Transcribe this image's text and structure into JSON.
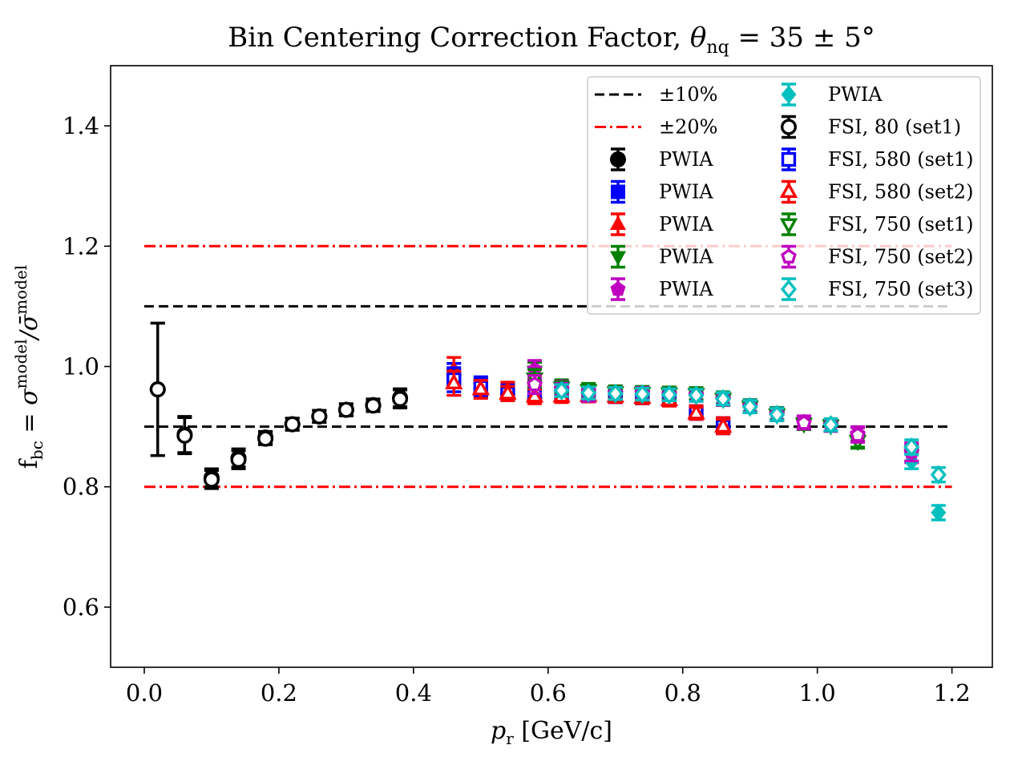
{
  "chart_data": {
    "type": "scatter",
    "title": "Bin Centering Correction Factor, θnq = 35 ± 5°",
    "title_parts": {
      "prefix": "Bin Centering Correction Factor, ",
      "theta": "θ",
      "sub": "nq",
      "rest": " = 35 ± 5°"
    },
    "xlabel": "pr [GeV/c]",
    "xlabel_parts": {
      "p": "p",
      "sub": "r",
      "rest": " [GeV/c]"
    },
    "ylabel": "fbc = σmodel/σ̄model",
    "ylabel_parts": {
      "f": "f",
      "fsub": "bc",
      "eq": " = σ",
      "sup1": "model",
      "slash": "/σ̄",
      "sup2": "model"
    },
    "xlim": [
      -0.05,
      1.26
    ],
    "ylim": [
      0.5,
      1.5
    ],
    "xticks": [
      0.0,
      0.2,
      0.4,
      0.6,
      0.8,
      1.0,
      1.2
    ],
    "xtick_labels": [
      "0.0",
      "0.2",
      "0.4",
      "0.6",
      "0.8",
      "1.0",
      "1.2"
    ],
    "yticks": [
      0.6,
      0.8,
      1.0,
      1.2,
      1.4
    ],
    "ytick_labels": [
      "0.6",
      "0.8",
      "1.0",
      "1.2",
      "1.4"
    ],
    "grid": false,
    "legend_position": "top-right",
    "reference_lines": [
      {
        "name": "±10%",
        "label": "±10%",
        "style": "dashed",
        "color": "#000000",
        "values": [
          0.9,
          1.1
        ],
        "x_range": [
          0.0,
          1.2
        ]
      },
      {
        "name": "±20%",
        "label": "±20%",
        "style": "dashdot",
        "color": "#ff0000",
        "values": [
          0.8,
          1.2
        ],
        "x_range": [
          0.0,
          1.2
        ]
      }
    ],
    "series": [
      {
        "name": "PWIA",
        "label": "PWIA",
        "marker": "circle",
        "filled": true,
        "color": "#000000",
        "points": [
          [
            0.02,
            0.962,
            0.11
          ],
          [
            0.06,
            0.887,
            0.03
          ],
          [
            0.1,
            0.815,
            0.015
          ],
          [
            0.14,
            0.848,
            0.015
          ],
          [
            0.18,
            0.882,
            0.01
          ],
          [
            0.22,
            0.904,
            0.01
          ],
          [
            0.26,
            0.917,
            0.01
          ],
          [
            0.3,
            0.928,
            0.01
          ],
          [
            0.34,
            0.936,
            0.01
          ],
          [
            0.38,
            0.948,
            0.015
          ]
        ]
      },
      {
        "name": "PWIA",
        "label": "PWIA",
        "marker": "square",
        "filled": true,
        "color": "#0000ff",
        "points": [
          [
            0.46,
            0.985,
            0.02
          ],
          [
            0.5,
            0.968,
            0.015
          ],
          [
            0.54,
            0.958,
            0.012
          ],
          [
            0.58,
            0.955,
            0.012
          ],
          [
            0.62,
            0.953,
            0.01
          ],
          [
            0.66,
            0.952,
            0.01
          ],
          [
            0.7,
            0.951,
            0.01
          ],
          [
            0.74,
            0.949,
            0.01
          ],
          [
            0.78,
            0.946,
            0.01
          ],
          [
            0.82,
            0.925,
            0.01
          ],
          [
            0.86,
            0.903,
            0.012
          ]
        ]
      },
      {
        "name": "PWIA",
        "label": "PWIA",
        "marker": "triangle-up",
        "filled": true,
        "color": "#ff0000",
        "points": [
          [
            0.46,
            0.995,
            0.02
          ],
          [
            0.5,
            0.965,
            0.015
          ],
          [
            0.54,
            0.962,
            0.012
          ],
          [
            0.58,
            0.955,
            0.012
          ],
          [
            0.62,
            0.952,
            0.01
          ],
          [
            0.66,
            0.953,
            0.01
          ],
          [
            0.7,
            0.951,
            0.01
          ],
          [
            0.74,
            0.949,
            0.01
          ],
          [
            0.78,
            0.945,
            0.01
          ],
          [
            0.82,
            0.925,
            0.01
          ],
          [
            0.86,
            0.903,
            0.012
          ]
        ]
      },
      {
        "name": "PWIA",
        "label": "PWIA",
        "marker": "triangle-down",
        "filled": true,
        "color": "#008000",
        "points": [
          [
            0.58,
            0.992,
            0.015
          ],
          [
            0.62,
            0.968,
            0.01
          ],
          [
            0.66,
            0.962,
            0.01
          ],
          [
            0.7,
            0.958,
            0.01
          ],
          [
            0.74,
            0.957,
            0.01
          ],
          [
            0.78,
            0.956,
            0.01
          ],
          [
            0.82,
            0.955,
            0.01
          ],
          [
            0.86,
            0.948,
            0.01
          ],
          [
            0.9,
            0.935,
            0.01
          ],
          [
            0.94,
            0.922,
            0.01
          ],
          [
            0.98,
            0.905,
            0.01
          ],
          [
            1.02,
            0.903,
            0.01
          ],
          [
            1.06,
            0.878,
            0.012
          ]
        ]
      },
      {
        "name": "PWIA",
        "label": "PWIA",
        "marker": "pentagon",
        "filled": true,
        "color": "#bf00bf",
        "points": [
          [
            0.58,
            0.995,
            0.015
          ],
          [
            0.62,
            0.966,
            0.01
          ],
          [
            0.66,
            0.958,
            0.01
          ],
          [
            0.7,
            0.957,
            0.01
          ],
          [
            0.74,
            0.956,
            0.01
          ],
          [
            0.78,
            0.955,
            0.01
          ],
          [
            0.82,
            0.953,
            0.01
          ],
          [
            0.86,
            0.946,
            0.01
          ],
          [
            0.9,
            0.934,
            0.01
          ],
          [
            0.94,
            0.921,
            0.01
          ],
          [
            0.98,
            0.908,
            0.01
          ],
          [
            1.02,
            0.903,
            0.01
          ],
          [
            1.06,
            0.888,
            0.012
          ],
          [
            1.14,
            0.855,
            0.015
          ]
        ]
      },
      {
        "name": "PWIA",
        "label": "PWIA",
        "marker": "diamond",
        "filled": true,
        "color": "#00bfbf",
        "points": [
          [
            0.62,
            0.962,
            0.01
          ],
          [
            0.66,
            0.958,
            0.01
          ],
          [
            0.7,
            0.956,
            0.01
          ],
          [
            0.74,
            0.955,
            0.01
          ],
          [
            0.78,
            0.954,
            0.01
          ],
          [
            0.82,
            0.953,
            0.01
          ],
          [
            0.86,
            0.947,
            0.01
          ],
          [
            0.9,
            0.934,
            0.01
          ],
          [
            0.94,
            0.921,
            0.01
          ],
          [
            1.02,
            0.903,
            0.01
          ],
          [
            1.14,
            0.842,
            0.012
          ],
          [
            1.18,
            0.757,
            0.012
          ]
        ]
      },
      {
        "name": "FSI, 80 (set1)",
        "label": "FSI, 80 (set1)",
        "marker": "circle",
        "filled": false,
        "color": "#000000",
        "points": [
          [
            0.02,
            0.962,
            0.11
          ],
          [
            0.06,
            0.885,
            0.03
          ],
          [
            0.1,
            0.812,
            0.015
          ],
          [
            0.14,
            0.845,
            0.015
          ],
          [
            0.18,
            0.88,
            0.01
          ],
          [
            0.22,
            0.904,
            0.01
          ],
          [
            0.26,
            0.917,
            0.01
          ],
          [
            0.3,
            0.928,
            0.01
          ],
          [
            0.34,
            0.935,
            0.01
          ],
          [
            0.38,
            0.946,
            0.015
          ]
        ]
      },
      {
        "name": "FSI, 580 (set1)",
        "label": "FSI, 580 (set1)",
        "marker": "square",
        "filled": false,
        "color": "#0000ff",
        "points": [
          [
            0.46,
            0.978,
            0.02
          ],
          [
            0.5,
            0.965,
            0.015
          ],
          [
            0.54,
            0.955,
            0.012
          ],
          [
            0.58,
            0.952,
            0.012
          ],
          [
            0.62,
            0.952,
            0.01
          ],
          [
            0.66,
            0.951,
            0.01
          ],
          [
            0.7,
            0.95,
            0.01
          ],
          [
            0.74,
            0.948,
            0.01
          ],
          [
            0.78,
            0.945,
            0.01
          ],
          [
            0.82,
            0.922,
            0.01
          ],
          [
            0.86,
            0.9,
            0.012
          ]
        ]
      },
      {
        "name": "FSI, 580 (set2)",
        "label": "FSI, 580 (set2)",
        "marker": "triangle-up",
        "filled": false,
        "color": "#ff0000",
        "points": [
          [
            0.46,
            0.972,
            0.02
          ],
          [
            0.5,
            0.962,
            0.015
          ],
          [
            0.54,
            0.955,
            0.012
          ],
          [
            0.58,
            0.95,
            0.012
          ],
          [
            0.62,
            0.95,
            0.01
          ],
          [
            0.66,
            0.951,
            0.01
          ],
          [
            0.7,
            0.95,
            0.01
          ],
          [
            0.74,
            0.948,
            0.01
          ],
          [
            0.78,
            0.944,
            0.01
          ],
          [
            0.82,
            0.922,
            0.01
          ],
          [
            0.86,
            0.9,
            0.012
          ]
        ]
      },
      {
        "name": "FSI, 750 (set1)",
        "label": "FSI, 750 (set1)",
        "marker": "triangle-down",
        "filled": false,
        "color": "#008000",
        "points": [
          [
            0.58,
            0.98,
            0.015
          ],
          [
            0.62,
            0.965,
            0.01
          ],
          [
            0.66,
            0.96,
            0.01
          ],
          [
            0.7,
            0.957,
            0.01
          ],
          [
            0.74,
            0.956,
            0.01
          ],
          [
            0.78,
            0.955,
            0.01
          ],
          [
            0.82,
            0.954,
            0.01
          ],
          [
            0.86,
            0.946,
            0.01
          ],
          [
            0.9,
            0.933,
            0.01
          ],
          [
            0.94,
            0.92,
            0.01
          ],
          [
            0.98,
            0.905,
            0.01
          ],
          [
            1.02,
            0.902,
            0.01
          ],
          [
            1.06,
            0.876,
            0.012
          ]
        ]
      },
      {
        "name": "FSI, 750 (set2)",
        "label": "FSI, 750 (set2)",
        "marker": "pentagon",
        "filled": false,
        "color": "#bf00bf",
        "points": [
          [
            0.58,
            0.97,
            0.015
          ],
          [
            0.62,
            0.962,
            0.01
          ],
          [
            0.66,
            0.952,
            0.01
          ],
          [
            0.7,
            0.955,
            0.01
          ],
          [
            0.74,
            0.955,
            0.01
          ],
          [
            0.78,
            0.953,
            0.01
          ],
          [
            0.82,
            0.952,
            0.01
          ],
          [
            0.86,
            0.945,
            0.01
          ],
          [
            0.9,
            0.933,
            0.01
          ],
          [
            0.94,
            0.92,
            0.01
          ],
          [
            0.98,
            0.906,
            0.01
          ],
          [
            1.02,
            0.902,
            0.01
          ],
          [
            1.06,
            0.886,
            0.012
          ],
          [
            1.14,
            0.858,
            0.015
          ]
        ]
      },
      {
        "name": "FSI, 750 (set3)",
        "label": "FSI, 750 (set3)",
        "marker": "diamond",
        "filled": false,
        "color": "#00bfbf",
        "points": [
          [
            0.62,
            0.96,
            0.01
          ],
          [
            0.66,
            0.956,
            0.01
          ],
          [
            0.7,
            0.955,
            0.01
          ],
          [
            0.74,
            0.954,
            0.01
          ],
          [
            0.78,
            0.953,
            0.01
          ],
          [
            0.82,
            0.952,
            0.01
          ],
          [
            0.86,
            0.946,
            0.01
          ],
          [
            0.9,
            0.933,
            0.01
          ],
          [
            0.94,
            0.92,
            0.01
          ],
          [
            1.02,
            0.903,
            0.01
          ],
          [
            1.14,
            0.866,
            0.012
          ],
          [
            1.18,
            0.82,
            0.012
          ]
        ]
      }
    ]
  }
}
